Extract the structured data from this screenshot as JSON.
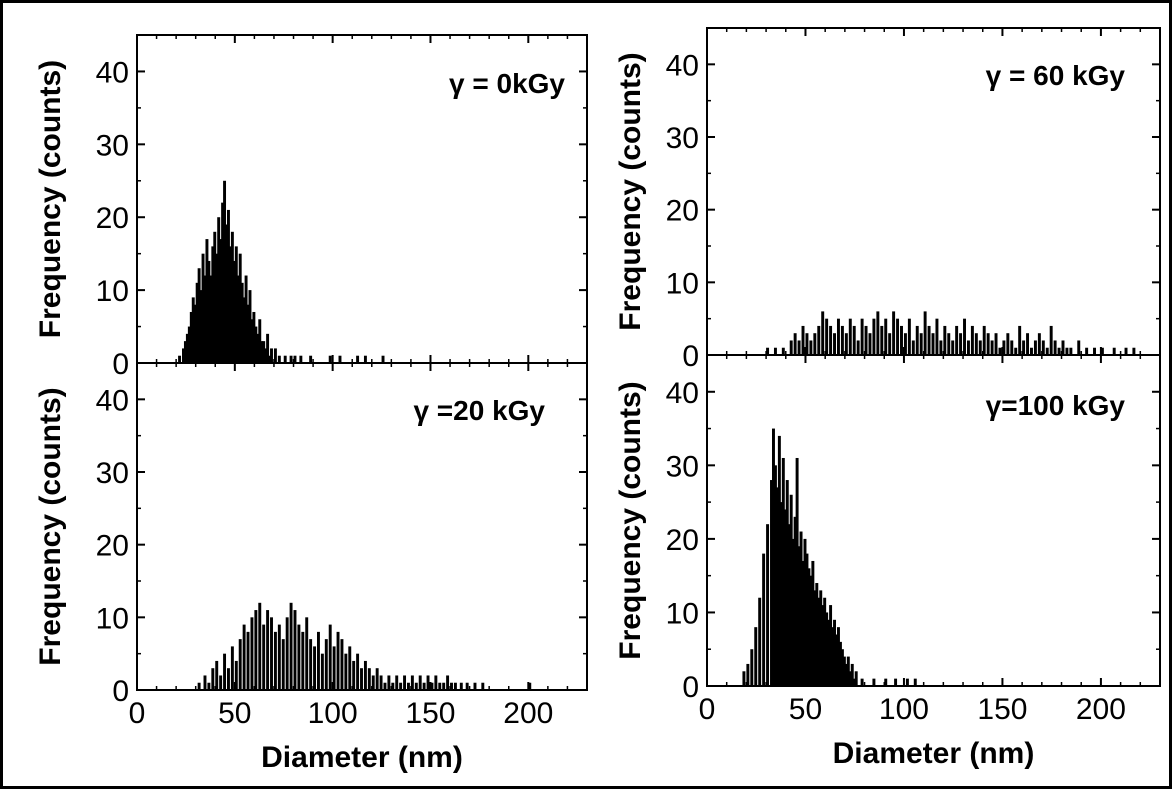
{
  "colors": {
    "bar": "#000000",
    "axis": "#000000",
    "background": "#ffffff"
  },
  "chart_data": [
    {
      "type": "bar",
      "label": "γ = 0kGy",
      "xlabel": "",
      "ylabel": "Frequency (counts)",
      "xlim": [
        0,
        230
      ],
      "ylim": [
        0,
        45
      ],
      "xticks": [],
      "yticks": [
        "0",
        "10",
        "20",
        "30",
        "40"
      ],
      "bin_width": 1.5,
      "bins": [
        [
          21,
          1
        ],
        [
          23,
          2
        ],
        [
          24,
          3
        ],
        [
          25,
          4
        ],
        [
          26,
          5
        ],
        [
          27,
          7
        ],
        [
          28,
          9
        ],
        [
          29,
          8
        ],
        [
          30,
          11
        ],
        [
          31,
          13
        ],
        [
          32,
          10
        ],
        [
          33,
          15
        ],
        [
          34,
          12
        ],
        [
          35,
          17
        ],
        [
          36,
          14
        ],
        [
          37,
          12
        ],
        [
          38,
          16
        ],
        [
          39,
          18
        ],
        [
          40,
          15
        ],
        [
          41,
          20
        ],
        [
          42,
          17
        ],
        [
          43,
          22
        ],
        [
          44,
          25
        ],
        [
          45,
          19
        ],
        [
          46,
          21
        ],
        [
          47,
          16
        ],
        [
          48,
          18
        ],
        [
          49,
          14
        ],
        [
          50,
          16
        ],
        [
          51,
          12
        ],
        [
          52,
          15
        ],
        [
          53,
          11
        ],
        [
          54,
          9
        ],
        [
          55,
          12
        ],
        [
          56,
          8
        ],
        [
          57,
          10
        ],
        [
          58,
          6
        ],
        [
          59,
          7
        ],
        [
          60,
          5
        ],
        [
          61,
          4
        ],
        [
          62,
          6
        ],
        [
          63,
          3
        ],
        [
          64,
          3
        ],
        [
          65,
          2
        ],
        [
          66,
          4
        ],
        [
          67,
          1
        ],
        [
          68,
          2
        ],
        [
          70,
          2
        ],
        [
          72,
          1
        ],
        [
          75,
          1
        ],
        [
          78,
          1
        ],
        [
          80,
          1
        ],
        [
          83,
          1
        ],
        [
          88,
          1
        ],
        [
          98,
          1
        ],
        [
          103,
          1
        ],
        [
          112,
          1
        ],
        [
          116,
          1
        ],
        [
          125,
          1
        ]
      ]
    },
    {
      "type": "bar",
      "label": "γ = 60 kGy",
      "xlabel": "",
      "ylabel": "Frequency (counts)",
      "xlim": [
        0,
        230
      ],
      "ylim": [
        0,
        45
      ],
      "xticks": [],
      "yticks": [
        "0",
        "10",
        "20",
        "30",
        "40"
      ],
      "bin_width": 1.5,
      "bins": [
        [
          30,
          1
        ],
        [
          34,
          1
        ],
        [
          38,
          1
        ],
        [
          42,
          2
        ],
        [
          44,
          3
        ],
        [
          46,
          2
        ],
        [
          48,
          4
        ],
        [
          50,
          3
        ],
        [
          52,
          2
        ],
        [
          54,
          3
        ],
        [
          56,
          4
        ],
        [
          58,
          6
        ],
        [
          60,
          5
        ],
        [
          62,
          4
        ],
        [
          64,
          3
        ],
        [
          66,
          5
        ],
        [
          68,
          4
        ],
        [
          70,
          3
        ],
        [
          72,
          5
        ],
        [
          74,
          4
        ],
        [
          76,
          2
        ],
        [
          78,
          5
        ],
        [
          80,
          4
        ],
        [
          82,
          3
        ],
        [
          84,
          5
        ],
        [
          86,
          6
        ],
        [
          88,
          4
        ],
        [
          90,
          5
        ],
        [
          92,
          3
        ],
        [
          94,
          6
        ],
        [
          96,
          5
        ],
        [
          98,
          4
        ],
        [
          100,
          3
        ],
        [
          102,
          5
        ],
        [
          104,
          2
        ],
        [
          106,
          4
        ],
        [
          108,
          3
        ],
        [
          110,
          6
        ],
        [
          112,
          4
        ],
        [
          114,
          3
        ],
        [
          116,
          5
        ],
        [
          118,
          2
        ],
        [
          120,
          4
        ],
        [
          122,
          3
        ],
        [
          124,
          2
        ],
        [
          126,
          4
        ],
        [
          128,
          3
        ],
        [
          130,
          5
        ],
        [
          132,
          2
        ],
        [
          134,
          4
        ],
        [
          136,
          3
        ],
        [
          138,
          2
        ],
        [
          140,
          4
        ],
        [
          142,
          3
        ],
        [
          144,
          2
        ],
        [
          146,
          3
        ],
        [
          148,
          1
        ],
        [
          150,
          2
        ],
        [
          152,
          3
        ],
        [
          154,
          2
        ],
        [
          156,
          1
        ],
        [
          158,
          4
        ],
        [
          160,
          2
        ],
        [
          162,
          3
        ],
        [
          164,
          1
        ],
        [
          166,
          2
        ],
        [
          168,
          3
        ],
        [
          170,
          2
        ],
        [
          172,
          1
        ],
        [
          174,
          4
        ],
        [
          176,
          2
        ],
        [
          178,
          1
        ],
        [
          180,
          2
        ],
        [
          182,
          1
        ],
        [
          184,
          1
        ],
        [
          188,
          2
        ],
        [
          192,
          1
        ],
        [
          196,
          1
        ],
        [
          200,
          1
        ],
        [
          206,
          1
        ],
        [
          212,
          1
        ],
        [
          216,
          1
        ]
      ]
    },
    {
      "type": "bar",
      "label": "γ =20 kGy",
      "xlabel": "Diameter (nm)",
      "ylabel": "Frequency (counts)",
      "xlim": [
        0,
        230
      ],
      "ylim": [
        0,
        45
      ],
      "xticks": [
        "0",
        "50",
        "100",
        "150",
        "200"
      ],
      "yticks": [
        "0",
        "10",
        "20",
        "30",
        "40"
      ],
      "bin_width": 1.5,
      "bins": [
        [
          31,
          1
        ],
        [
          34,
          2
        ],
        [
          36,
          1
        ],
        [
          38,
          3
        ],
        [
          40,
          4
        ],
        [
          42,
          2
        ],
        [
          44,
          5
        ],
        [
          46,
          3
        ],
        [
          48,
          6
        ],
        [
          50,
          4
        ],
        [
          52,
          7
        ],
        [
          54,
          9
        ],
        [
          56,
          8
        ],
        [
          58,
          10
        ],
        [
          60,
          11
        ],
        [
          62,
          12
        ],
        [
          64,
          9
        ],
        [
          66,
          11
        ],
        [
          68,
          10
        ],
        [
          70,
          8
        ],
        [
          72,
          9
        ],
        [
          74,
          7
        ],
        [
          76,
          10
        ],
        [
          78,
          12
        ],
        [
          80,
          11
        ],
        [
          82,
          9
        ],
        [
          84,
          8
        ],
        [
          86,
          10
        ],
        [
          88,
          7
        ],
        [
          90,
          6
        ],
        [
          92,
          8
        ],
        [
          94,
          5
        ],
        [
          96,
          7
        ],
        [
          98,
          9
        ],
        [
          100,
          6
        ],
        [
          102,
          8
        ],
        [
          104,
          7
        ],
        [
          106,
          5
        ],
        [
          108,
          6
        ],
        [
          110,
          4
        ],
        [
          112,
          5
        ],
        [
          114,
          3
        ],
        [
          116,
          4
        ],
        [
          118,
          3
        ],
        [
          120,
          2
        ],
        [
          122,
          3
        ],
        [
          124,
          2
        ],
        [
          126,
          1
        ],
        [
          128,
          2
        ],
        [
          130,
          1
        ],
        [
          132,
          2
        ],
        [
          134,
          1
        ],
        [
          136,
          2
        ],
        [
          138,
          1
        ],
        [
          140,
          2
        ],
        [
          142,
          1
        ],
        [
          144,
          2
        ],
        [
          146,
          1
        ],
        [
          148,
          2
        ],
        [
          150,
          1
        ],
        [
          152,
          2
        ],
        [
          154,
          1
        ],
        [
          156,
          1
        ],
        [
          158,
          2
        ],
        [
          160,
          1
        ],
        [
          162,
          1
        ],
        [
          165,
          1
        ],
        [
          168,
          1
        ],
        [
          172,
          1
        ],
        [
          176,
          1
        ],
        [
          200,
          1
        ]
      ]
    },
    {
      "type": "bar",
      "label": "γ=100 kGy",
      "xlabel": "Diameter (nm)",
      "ylabel": "Frequency (counts)",
      "xlim": [
        0,
        230
      ],
      "ylim": [
        0,
        45
      ],
      "xticks": [
        "0",
        "50",
        "100",
        "150",
        "200"
      ],
      "yticks": [
        "0",
        "10",
        "20",
        "30",
        "40"
      ],
      "bin_width": 1.5,
      "bins": [
        [
          18,
          2
        ],
        [
          20,
          3
        ],
        [
          22,
          5
        ],
        [
          24,
          8
        ],
        [
          26,
          12
        ],
        [
          28,
          18
        ],
        [
          30,
          22
        ],
        [
          32,
          28
        ],
        [
          33,
          35
        ],
        [
          34,
          30
        ],
        [
          35,
          27
        ],
        [
          36,
          34
        ],
        [
          37,
          25
        ],
        [
          38,
          31
        ],
        [
          39,
          24
        ],
        [
          40,
          28
        ],
        [
          41,
          22
        ],
        [
          42,
          26
        ],
        [
          43,
          20
        ],
        [
          44,
          23
        ],
        [
          45,
          31
        ],
        [
          46,
          19
        ],
        [
          47,
          21
        ],
        [
          48,
          17
        ],
        [
          49,
          20
        ],
        [
          50,
          18
        ],
        [
          51,
          16
        ],
        [
          52,
          15
        ],
        [
          53,
          17
        ],
        [
          54,
          13
        ],
        [
          55,
          14
        ],
        [
          56,
          12
        ],
        [
          57,
          13
        ],
        [
          58,
          11
        ],
        [
          59,
          12
        ],
        [
          60,
          10
        ],
        [
          61,
          9
        ],
        [
          62,
          11
        ],
        [
          63,
          8
        ],
        [
          64,
          9
        ],
        [
          65,
          7
        ],
        [
          66,
          8
        ],
        [
          67,
          6
        ],
        [
          68,
          5
        ],
        [
          69,
          4
        ],
        [
          70,
          3
        ],
        [
          71,
          4
        ],
        [
          72,
          2
        ],
        [
          73,
          3
        ],
        [
          74,
          1
        ],
        [
          75,
          2
        ],
        [
          78,
          1
        ],
        [
          84,
          1
        ],
        [
          90,
          1
        ],
        [
          95,
          1
        ],
        [
          101,
          1
        ],
        [
          105,
          1
        ]
      ]
    }
  ]
}
